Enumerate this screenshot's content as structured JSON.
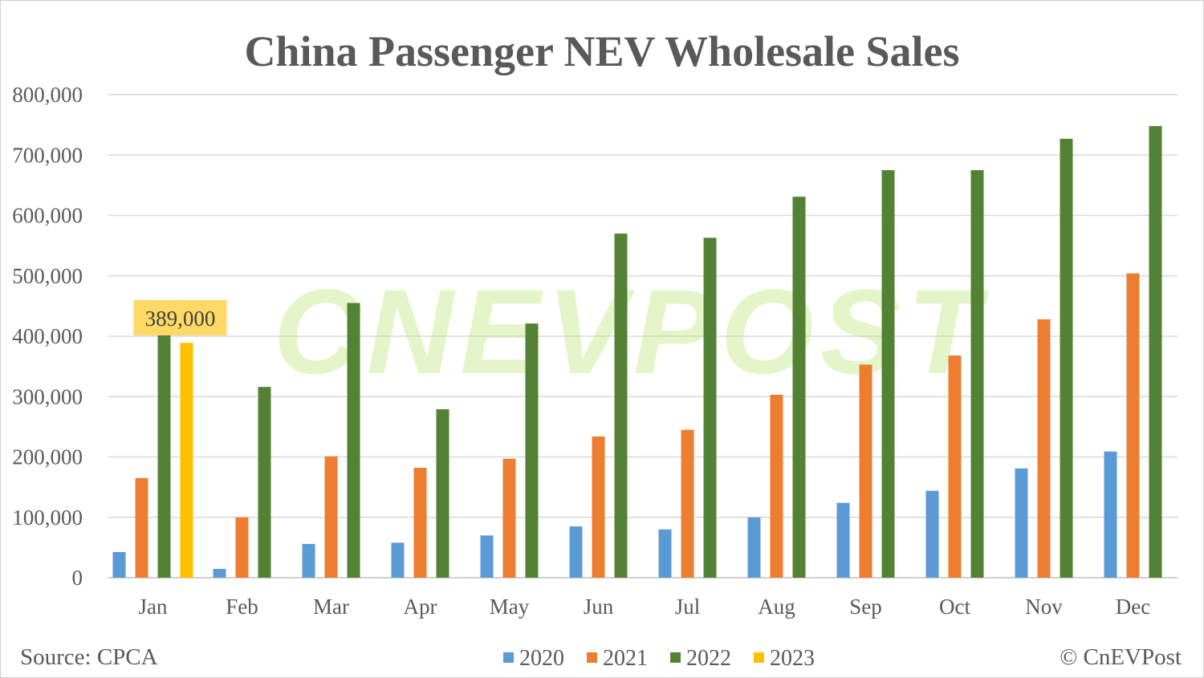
{
  "chart_data": {
    "type": "bar",
    "title": "China Passenger NEV Wholesale Sales",
    "categories": [
      "Jan",
      "Feb",
      "Mar",
      "Apr",
      "May",
      "Jun",
      "Jul",
      "Aug",
      "Sep",
      "Oct",
      "Nov",
      "Dec"
    ],
    "series": [
      {
        "name": "2020",
        "color": "#5b9bd5",
        "values": [
          42500,
          14600,
          56000,
          58000,
          70000,
          85000,
          80000,
          100000,
          124000,
          144000,
          181000,
          209000
        ]
      },
      {
        "name": "2021",
        "color": "#ed7d31",
        "values": [
          165000,
          100000,
          201000,
          182000,
          197000,
          234000,
          245000,
          303000,
          353000,
          368000,
          428000,
          504000
        ]
      },
      {
        "name": "2022",
        "color": "#548235",
        "values": [
          412000,
          316000,
          455000,
          279000,
          421000,
          570000,
          563000,
          631000,
          675000,
          675000,
          727000,
          748000
        ]
      },
      {
        "name": "2023",
        "color": "#ffc000",
        "values": [
          389000,
          null,
          null,
          null,
          null,
          null,
          null,
          null,
          null,
          null,
          null,
          null
        ]
      }
    ],
    "ylim": [
      0,
      800000
    ],
    "yticks": [
      "0",
      "100,000",
      "200,000",
      "300,000",
      "400,000",
      "500,000",
      "600,000",
      "700,000",
      "800,000"
    ],
    "grid": true,
    "legend": "bottom",
    "annotation": {
      "text": "389,000",
      "category": "Jan",
      "series": "2023",
      "background": "#ffd966"
    }
  },
  "footer": {
    "source": "Source: CPCA",
    "credit": "© CnEVPost"
  },
  "watermark": "CnEVPost"
}
